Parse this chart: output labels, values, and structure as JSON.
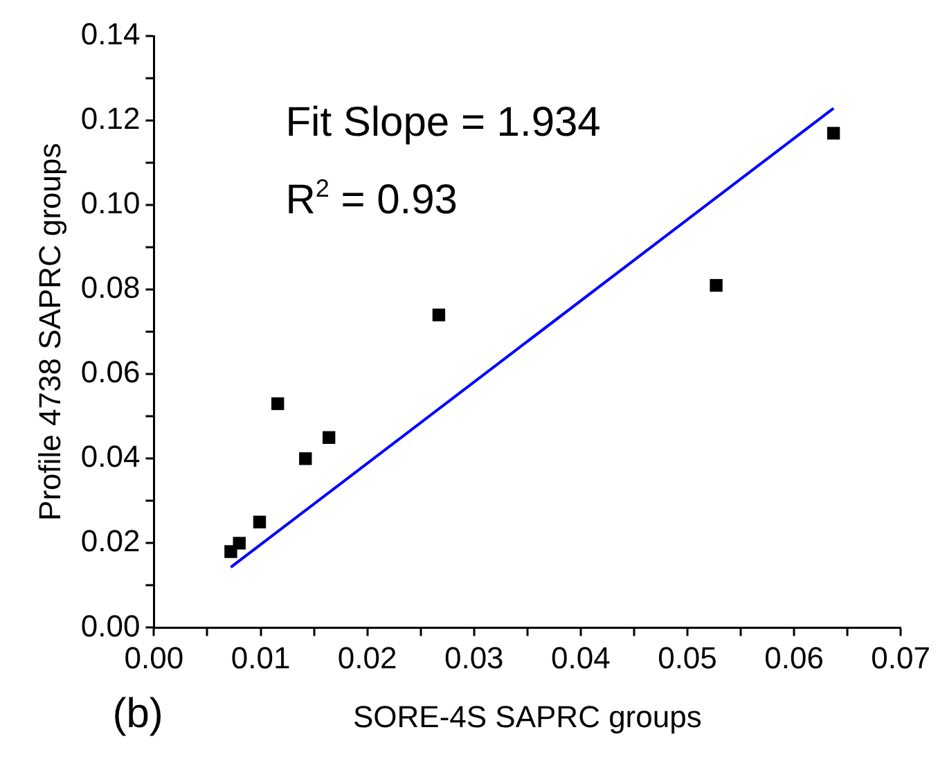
{
  "chart_data": {
    "type": "scatter",
    "xlabel": "SORE-4S SAPRC groups",
    "ylabel": "Profile 4738 SAPRC groups",
    "annotations": [
      "Fit Slope = 1.934",
      "R$^{2}$ = 0.93",
      "(b)"
    ],
    "xlim": [
      0,
      0.07
    ],
    "xticks": [
      {
        "value": 0,
        "label": "0.00"
      },
      {
        "value": 0.005,
        "label": null
      },
      {
        "value": 0.01,
        "label": "0.01"
      },
      {
        "value": 0.015,
        "label": null
      },
      {
        "value": 0.02,
        "label": "0.02"
      },
      {
        "value": 0.025,
        "label": null
      },
      {
        "value": 0.03,
        "label": "0.03"
      },
      {
        "value": 0.035,
        "label": null
      },
      {
        "value": 0.04,
        "label": "0.04"
      },
      {
        "value": 0.045,
        "label": null
      },
      {
        "value": 0.05,
        "label": "0.05"
      },
      {
        "value": 0.055,
        "label": null
      },
      {
        "value": 0.06,
        "label": "0.06"
      },
      {
        "value": 0.065,
        "label": null
      },
      {
        "value": 0.07,
        "label": "0.07"
      }
    ],
    "ylim": [
      0,
      0.14
    ],
    "yticks": [
      {
        "value": 0,
        "label": "0.00"
      },
      {
        "value": 0.01,
        "label": null
      },
      {
        "value": 0.02,
        "label": "0.02"
      },
      {
        "value": 0.03,
        "label": null
      },
      {
        "value": 0.04,
        "label": "0.04"
      },
      {
        "value": 0.05,
        "label": null
      },
      {
        "value": 0.06,
        "label": "0.06"
      },
      {
        "value": 0.07,
        "label": null
      },
      {
        "value": 0.08,
        "label": "0.08"
      },
      {
        "value": 0.09,
        "label": null
      },
      {
        "value": 0.1,
        "label": "0.10"
      },
      {
        "value": 0.11,
        "label": null
      },
      {
        "value": 0.12,
        "label": "0.12"
      },
      {
        "value": 0.13,
        "label": null
      },
      {
        "value": 0.14,
        "label": "0.14"
      }
    ],
    "grid": false,
    "series": [
      {
        "marker": "square",
        "color": "#000000",
        "x": [
          0.0072,
          0.008,
          0.0099,
          0.0116,
          0.0142,
          0.0164,
          0.0267,
          0.0527,
          0.0637
        ],
        "values": [
          0.018,
          0.02,
          0.025,
          0.053,
          0.04,
          0.045,
          0.074,
          0.081,
          0.117
        ]
      },
      {
        "type": "line",
        "marker": "none",
        "color": "#0000ff",
        "x": [
          0.0072,
          0.0637
        ],
        "values": [
          0.0143,
          0.1229
        ]
      }
    ]
  }
}
